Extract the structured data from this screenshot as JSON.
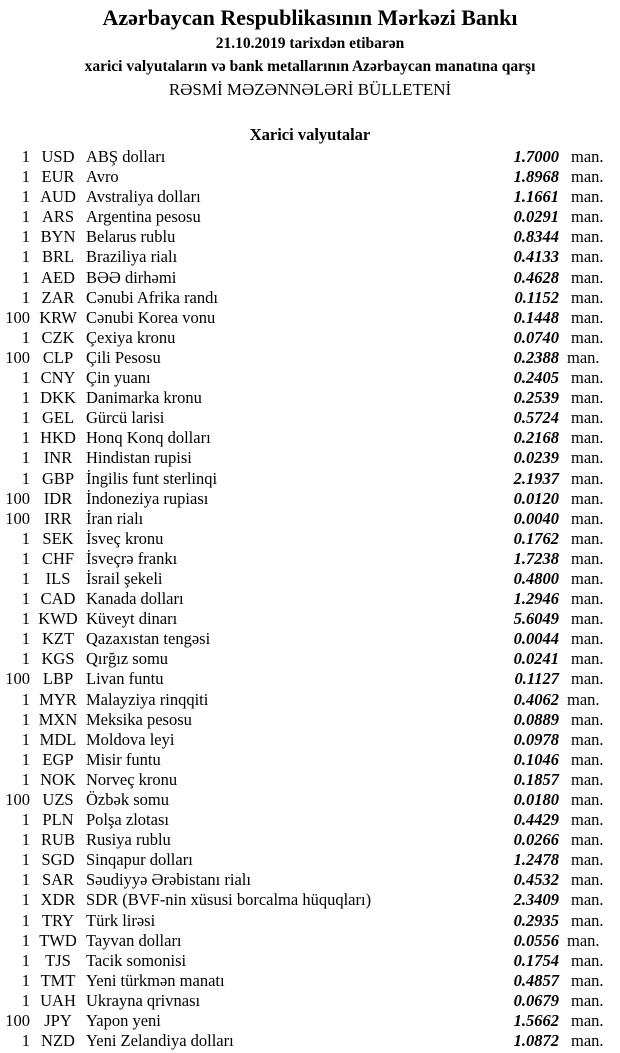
{
  "header": {
    "title": "Azərbaycan Respublikasının Mərkəzi Bankı",
    "date_line": "21.10.2019  tarixdən etibarən",
    "subtitle": "xarici valyutaların və bank metallarının Azərbaycan manatına qarşı",
    "bulletin": "RƏSMİ MƏZƏNNƏLƏRİ BÜLLETENİ"
  },
  "section_title": "Xarici valyutalar",
  "rates": [
    {
      "amount": "1",
      "code": "USD",
      "name": "ABŞ dolları",
      "rate": "1.7000",
      "unit": "man."
    },
    {
      "amount": "1",
      "code": "EUR",
      "name": "Avro",
      "rate": "1.8968",
      "unit": "man."
    },
    {
      "amount": "1",
      "code": "AUD",
      "name": "Avstraliya dolları",
      "rate": "1.1661",
      "unit": "man."
    },
    {
      "amount": "1",
      "code": "ARS",
      "name": "Argentina pesosu",
      "rate": "0.0291",
      "unit": "man."
    },
    {
      "amount": "1",
      "code": "BYN",
      "name": "Belarus rublu",
      "rate": "0.8344",
      "unit": "man."
    },
    {
      "amount": "1",
      "code": "BRL",
      "name": "Braziliya rialı",
      "rate": "0.4133",
      "unit": "man."
    },
    {
      "amount": "1",
      "code": "AED",
      "name": "BƏƏ dirhəmi",
      "rate": "0.4628",
      "unit": "man."
    },
    {
      "amount": "1",
      "code": "ZAR",
      "name": "Cənubi Afrika randı",
      "rate": "0.1152",
      "unit": "man."
    },
    {
      "amount": "100",
      "code": "KRW",
      "name": "Cənubi Korea vonu",
      "rate": "0.1448",
      "unit": "man."
    },
    {
      "amount": "1",
      "code": "CZK",
      "name": "Çexiya kronu",
      "rate": "0.0740",
      "unit": "man."
    },
    {
      "amount": "100",
      "code": "CLP",
      "name": "Çili Pesosu",
      "rate": "0.2388",
      "unit": "man."
    },
    {
      "amount": "1",
      "code": "CNY",
      "name": "Çin yuanı",
      "rate": "0.2405",
      "unit": "man."
    },
    {
      "amount": "1",
      "code": "DKK",
      "name": "Danimarka kronu",
      "rate": "0.2539",
      "unit": "man."
    },
    {
      "amount": "1",
      "code": "GEL",
      "name": "Gürcü larisi",
      "rate": "0.5724",
      "unit": "man."
    },
    {
      "amount": "1",
      "code": "HKD",
      "name": "Honq Konq dolları",
      "rate": "0.2168",
      "unit": "man."
    },
    {
      "amount": "1",
      "code": "INR",
      "name": "Hindistan rupisi",
      "rate": "0.0239",
      "unit": "man."
    },
    {
      "amount": "1",
      "code": "GBP",
      "name": "İngilis funt sterlinqi",
      "rate": "2.1937",
      "unit": "man."
    },
    {
      "amount": "100",
      "code": "IDR",
      "name": "İndoneziya rupiası",
      "rate": "0.0120",
      "unit": "man."
    },
    {
      "amount": "100",
      "code": "IRR",
      "name": "İran rialı",
      "rate": "0.0040",
      "unit": "man."
    },
    {
      "amount": "1",
      "code": "SEK",
      "name": "İsveç kronu",
      "rate": "0.1762",
      "unit": "man."
    },
    {
      "amount": "1",
      "code": "CHF",
      "name": "İsveçrə frankı",
      "rate": "1.7238",
      "unit": "man."
    },
    {
      "amount": "1",
      "code": "ILS",
      "name": "İsrail şekeli",
      "rate": "0.4800",
      "unit": "man."
    },
    {
      "amount": "1",
      "code": "CAD",
      "name": "Kanada dolları",
      "rate": "1.2946",
      "unit": "man."
    },
    {
      "amount": "1",
      "code": "KWD",
      "name": "Küveyt dinarı",
      "rate": "5.6049",
      "unit": "man."
    },
    {
      "amount": "1",
      "code": "KZT",
      "name": "Qazaxıstan tengəsi",
      "rate": "0.0044",
      "unit": "man."
    },
    {
      "amount": "1",
      "code": "KGS",
      "name": "Qırğız somu",
      "rate": "0.0241",
      "unit": "man."
    },
    {
      "amount": "100",
      "code": "LBP",
      "name": "Livan funtu",
      "rate": "0.1127",
      "unit": "man."
    },
    {
      "amount": "1",
      "code": "MYR",
      "name": "Malayziya rinqqiti",
      "rate": "0.4062",
      "unit": "man."
    },
    {
      "amount": "1",
      "code": "MXN",
      "name": "Meksika pesosu",
      "rate": "0.0889",
      "unit": "man."
    },
    {
      "amount": "1",
      "code": "MDL",
      "name": "Moldova leyi",
      "rate": "0.0978",
      "unit": "man."
    },
    {
      "amount": "1",
      "code": "EGP",
      "name": "Misir funtu",
      "rate": "0.1046",
      "unit": "man."
    },
    {
      "amount": "1",
      "code": "NOK",
      "name": "Norveç kronu",
      "rate": "0.1857",
      "unit": "man."
    },
    {
      "amount": "100",
      "code": "UZS",
      "name": "Özbək somu",
      "rate": "0.0180",
      "unit": "man."
    },
    {
      "amount": "1",
      "code": "PLN",
      "name": "Polşa zlotası",
      "rate": "0.4429",
      "unit": "man."
    },
    {
      "amount": "1",
      "code": "RUB",
      "name": "Rusiya rublu",
      "rate": "0.0266",
      "unit": "man."
    },
    {
      "amount": "1",
      "code": "SGD",
      "name": "Sinqapur dolları",
      "rate": "1.2478",
      "unit": "man."
    },
    {
      "amount": "1",
      "code": "SAR",
      "name": "Səudiyyə Ərəbistanı rialı",
      "rate": "0.4532",
      "unit": "man."
    },
    {
      "amount": "1",
      "code": "XDR",
      "name": "SDR (BVF-nin xüsusi borcalma hüquqları)",
      "rate": "2.3409",
      "unit": "man."
    },
    {
      "amount": "1",
      "code": "TRY",
      "name": "Türk lirəsi",
      "rate": "0.2935",
      "unit": "man."
    },
    {
      "amount": "1",
      "code": "TWD",
      "name": "Tayvan dolları",
      "rate": "0.0556",
      "unit": "man."
    },
    {
      "amount": "1",
      "code": "TJS",
      "name": "Tacik somonisi",
      "rate": "0.1754",
      "unit": "man."
    },
    {
      "amount": "1",
      "code": "TMT",
      "name": "Yeni türkmən manatı",
      "rate": "0.4857",
      "unit": "man."
    },
    {
      "amount": "1",
      "code": "UAH",
      "name": "Ukrayna qrivnası",
      "rate": "0.0679",
      "unit": "man."
    },
    {
      "amount": "100",
      "code": "JPY",
      "name": "Yapon yeni",
      "rate": "1.5662",
      "unit": "man."
    },
    {
      "amount": "1",
      "code": "NZD",
      "name": "Yeni Zelandiya dolları",
      "rate": "1.0872",
      "unit": "man."
    }
  ]
}
